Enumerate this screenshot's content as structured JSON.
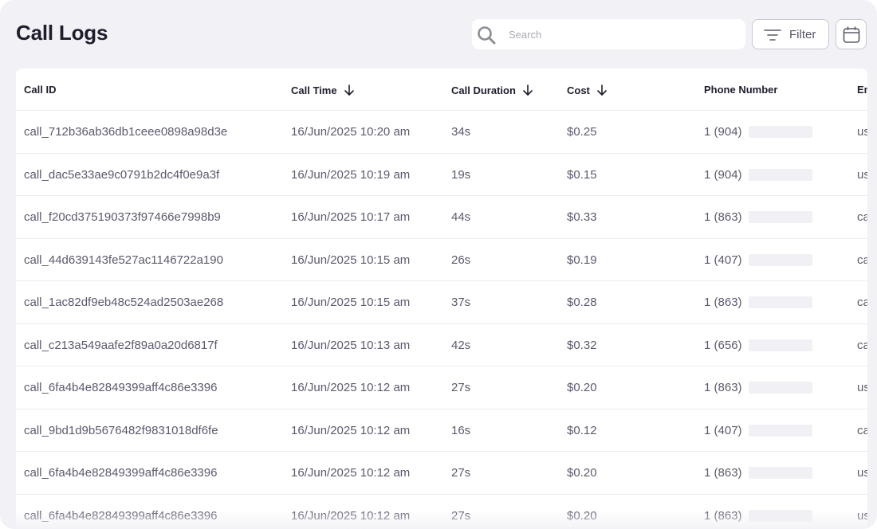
{
  "page": {
    "title": "Call Logs"
  },
  "toolbar": {
    "search_placeholder": "Search",
    "search_value": "",
    "filter_label": "Filter"
  },
  "table": {
    "columns": [
      {
        "label": "Call ID",
        "sortable": false
      },
      {
        "label": "Call Time",
        "sortable": true
      },
      {
        "label": "Call Duration",
        "sortable": true
      },
      {
        "label": "Cost",
        "sortable": true
      },
      {
        "label": "Phone Number",
        "sortable": false
      },
      {
        "label": "Em",
        "sortable": false
      }
    ],
    "rows": [
      {
        "call_id": "call_712b36ab36db1ceee0898a98d3e",
        "call_time": "16/Jun/2025 10:20 am",
        "duration": "34s",
        "cost": "$0.25",
        "phone": "1 (904)",
        "extra": "us"
      },
      {
        "call_id": "call_dac5e33ae9c0791b2dc4f0e9a3f",
        "call_time": "16/Jun/2025 10:19 am",
        "duration": "19s",
        "cost": "$0.15",
        "phone": "1 (904)",
        "extra": "us"
      },
      {
        "call_id": "call_f20cd375190373f97466e7998b9",
        "call_time": "16/Jun/2025 10:17 am",
        "duration": "44s",
        "cost": "$0.33",
        "phone": "1 (863)",
        "extra": "ca"
      },
      {
        "call_id": "call_44d639143fe527ac1146722a190",
        "call_time": "16/Jun/2025 10:15 am",
        "duration": "26s",
        "cost": "$0.19",
        "phone": "1 (407)",
        "extra": "ca"
      },
      {
        "call_id": "call_1ac82df9eb48c524ad2503ae268",
        "call_time": "16/Jun/2025 10:15 am",
        "duration": "37s",
        "cost": "$0.28",
        "phone": "1 (863)",
        "extra": "ca"
      },
      {
        "call_id": "call_c213a549aafe2f89a0a20d6817f",
        "call_time": "16/Jun/2025 10:13 am",
        "duration": "42s",
        "cost": "$0.32",
        "phone": "1 (656)",
        "extra": "ca"
      },
      {
        "call_id": "call_6fa4b4e82849399aff4c86e3396",
        "call_time": "16/Jun/2025 10:12 am",
        "duration": "27s",
        "cost": "$0.20",
        "phone": "1 (863)",
        "extra": "us"
      },
      {
        "call_id": "call_9bd1d9b5676482f9831018df6fe",
        "call_time": "16/Jun/2025 10:12 am",
        "duration": "16s",
        "cost": "$0.12",
        "phone": "1 (407)",
        "extra": "ca"
      },
      {
        "call_id": "call_6fa4b4e82849399aff4c86e3396",
        "call_time": "16/Jun/2025 10:12 am",
        "duration": "27s",
        "cost": "$0.20",
        "phone": "1 (863)",
        "extra": "us"
      },
      {
        "call_id": "call_6fa4b4e82849399aff4c86e3396",
        "call_time": "16/Jun/2025 10:12 am",
        "duration": "27s",
        "cost": "$0.20",
        "phone": "1 (863)",
        "extra": "us"
      }
    ]
  },
  "icons": {
    "search": "search-icon",
    "filter": "filter-icon",
    "calendar": "calendar-icon",
    "sort": "arrow-down-icon"
  },
  "colors": {
    "background": "#f2f1f5",
    "card": "#ffffff",
    "title_text": "#1f1d2b",
    "cell_text": "#5b5a6e",
    "row_divider": "#ececf0",
    "redaction": "#f1f0f4"
  }
}
